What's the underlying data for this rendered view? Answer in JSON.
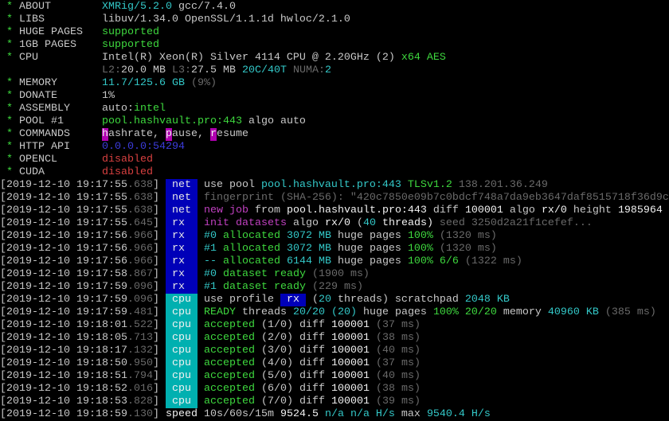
{
  "colors": {
    "background": "#000000",
    "net_tag": "#0000b8",
    "rx_tag": "#0000b8",
    "cpu_tag": "#00b0b0",
    "green": "#3ed83e",
    "cyan": "#33c8c8",
    "red": "#d84040",
    "magenta": "#c040c0",
    "blue": "#3c3cdc",
    "gray": "#6a6a6a"
  },
  "lines": [
    {
      "segs": [
        [
          " * ",
          "g"
        ],
        [
          "ABOUT        ",
          "w"
        ],
        [
          "XMRig/5.2.0",
          "c"
        ],
        [
          " gcc/7.4.0",
          "w"
        ]
      ]
    },
    {
      "segs": [
        [
          " * ",
          "g"
        ],
        [
          "LIBS         ",
          "w"
        ],
        [
          "libuv/1.34.0 OpenSSL/1.1.1d hwloc/2.1.0",
          "w"
        ]
      ]
    },
    {
      "segs": [
        [
          " * ",
          "g"
        ],
        [
          "HUGE PAGES   ",
          "w"
        ],
        [
          "supported",
          "g"
        ]
      ]
    },
    {
      "segs": [
        [
          " * ",
          "g"
        ],
        [
          "1GB PAGES    ",
          "w"
        ],
        [
          "supported",
          "g"
        ]
      ]
    },
    {
      "segs": [
        [
          " * ",
          "g"
        ],
        [
          "CPU          ",
          "w"
        ],
        [
          "Intel(R) Xeon(R) Silver 4114 CPU @ 2.20GHz (2) ",
          "w"
        ],
        [
          "x64 AES",
          "g"
        ]
      ]
    },
    {
      "segs": [
        [
          "                ",
          "w"
        ],
        [
          "L2:",
          "d"
        ],
        [
          "20.0 MB ",
          "w"
        ],
        [
          "L3:",
          "d"
        ],
        [
          "27.5 MB ",
          "w"
        ],
        [
          "20C/40T",
          "c"
        ],
        [
          " NUMA:",
          "d"
        ],
        [
          "2",
          "c"
        ]
      ]
    },
    {
      "segs": [
        [
          " * ",
          "g"
        ],
        [
          "MEMORY       ",
          "w"
        ],
        [
          "11.7/125.6 GB",
          "c"
        ],
        [
          " (9%)",
          "d"
        ]
      ]
    },
    {
      "segs": [
        [
          " * ",
          "g"
        ],
        [
          "DONATE       ",
          "w"
        ],
        [
          "1%",
          "w"
        ]
      ]
    },
    {
      "segs": [
        [
          " * ",
          "g"
        ],
        [
          "ASSEMBLY     ",
          "w"
        ],
        [
          "auto:",
          "w"
        ],
        [
          "intel",
          "g"
        ]
      ]
    },
    {
      "segs": [
        [
          " * ",
          "g"
        ],
        [
          "POOL #1      ",
          "w"
        ],
        [
          "pool.hashvault.pro:443",
          "g"
        ],
        [
          " algo auto",
          "w"
        ]
      ]
    },
    {
      "segs": [
        [
          " * ",
          "g"
        ],
        [
          "COMMANDS     ",
          "w"
        ],
        [
          "h",
          "hl"
        ],
        [
          "ashrate, ",
          "w"
        ],
        [
          "p",
          "hl"
        ],
        [
          "ause, ",
          "w"
        ],
        [
          "r",
          "hl"
        ],
        [
          "esume",
          "w"
        ]
      ]
    },
    {
      "segs": [
        [
          " * ",
          "g"
        ],
        [
          "HTTP API     ",
          "w"
        ],
        [
          "0.0.0.0:54294",
          "b"
        ]
      ]
    },
    {
      "segs": [
        [
          " * ",
          "g"
        ],
        [
          "OPENCL       ",
          "w"
        ],
        [
          "disabled",
          "r"
        ]
      ]
    },
    {
      "segs": [
        [
          " * ",
          "g"
        ],
        [
          "CUDA         ",
          "w"
        ],
        [
          "disabled",
          "r"
        ]
      ]
    },
    {
      "segs": [
        [
          "[2019-12-10 19:17:55",
          "w"
        ],
        [
          ".638",
          "d"
        ],
        [
          "] ",
          "w"
        ],
        [
          " net ",
          "tag-net"
        ],
        [
          " ",
          "w"
        ],
        [
          "use pool ",
          "w"
        ],
        [
          "pool.hashvault.pro:443",
          "c"
        ],
        [
          " TLSv1.2",
          "g"
        ],
        [
          " 138.201.36.249",
          "d"
        ]
      ]
    },
    {
      "segs": [
        [
          "[2019-12-10 19:17:55",
          "w"
        ],
        [
          ".638",
          "d"
        ],
        [
          "] ",
          "w"
        ],
        [
          " net ",
          "tag-net"
        ],
        [
          " ",
          "w"
        ],
        [
          "fingerprint (SHA-256): \"420c7850e09b7c0bdcf748a7da9eb3647daf8515718f36d9c",
          "d"
        ]
      ]
    },
    {
      "segs": [
        [
          "[2019-12-10 19:17:55",
          "w"
        ],
        [
          ".638",
          "d"
        ],
        [
          "] ",
          "w"
        ],
        [
          " net ",
          "tag-net"
        ],
        [
          " ",
          "w"
        ],
        [
          "new job",
          "m"
        ],
        [
          " from ",
          "w"
        ],
        [
          "pool.hashvault.pro:443",
          "bw"
        ],
        [
          " diff ",
          "w"
        ],
        [
          "100001",
          "bw"
        ],
        [
          " algo ",
          "w"
        ],
        [
          "rx/0",
          "bw"
        ],
        [
          " height ",
          "w"
        ],
        [
          "1985964",
          "bw"
        ]
      ]
    },
    {
      "segs": [
        [
          "[2019-12-10 19:17:55",
          "w"
        ],
        [
          ".645",
          "d"
        ],
        [
          "] ",
          "w"
        ],
        [
          " rx  ",
          "tag-rx"
        ],
        [
          " ",
          "w"
        ],
        [
          "init datasets",
          "m"
        ],
        [
          " algo ",
          "w"
        ],
        [
          "rx/0",
          "bw"
        ],
        [
          " (",
          "w"
        ],
        [
          "40",
          "c"
        ],
        [
          " threads)",
          "bw"
        ],
        [
          " seed 3250d2a21f1cefef...",
          "d"
        ]
      ]
    },
    {
      "segs": [
        [
          "[2019-12-10 19:17:56",
          "w"
        ],
        [
          ".966",
          "d"
        ],
        [
          "] ",
          "w"
        ],
        [
          " rx  ",
          "tag-rx"
        ],
        [
          " ",
          "w"
        ],
        [
          "#0",
          "c"
        ],
        [
          " allocated ",
          "g"
        ],
        [
          "3072 MB",
          "c"
        ],
        [
          " huge pages ",
          "w"
        ],
        [
          "100%",
          "g"
        ],
        [
          " (1320 ms)",
          "d"
        ]
      ]
    },
    {
      "segs": [
        [
          "[2019-12-10 19:17:56",
          "w"
        ],
        [
          ".966",
          "d"
        ],
        [
          "] ",
          "w"
        ],
        [
          " rx  ",
          "tag-rx"
        ],
        [
          " ",
          "w"
        ],
        [
          "#1",
          "c"
        ],
        [
          " allocated ",
          "g"
        ],
        [
          "3072 MB",
          "c"
        ],
        [
          " huge pages ",
          "w"
        ],
        [
          "100%",
          "g"
        ],
        [
          " (1320 ms)",
          "d"
        ]
      ]
    },
    {
      "segs": [
        [
          "[2019-12-10 19:17:56",
          "w"
        ],
        [
          ".966",
          "d"
        ],
        [
          "] ",
          "w"
        ],
        [
          " rx  ",
          "tag-rx"
        ],
        [
          " ",
          "w"
        ],
        [
          "--",
          "c"
        ],
        [
          " allocated ",
          "g"
        ],
        [
          "6144 MB",
          "c"
        ],
        [
          " huge pages ",
          "w"
        ],
        [
          "100% 6/6",
          "g"
        ],
        [
          " (1322 ms)",
          "d"
        ]
      ]
    },
    {
      "segs": [
        [
          "[2019-12-10 19:17:58",
          "w"
        ],
        [
          ".867",
          "d"
        ],
        [
          "] ",
          "w"
        ],
        [
          " rx  ",
          "tag-rx"
        ],
        [
          " ",
          "w"
        ],
        [
          "#0",
          "c"
        ],
        [
          " dataset ready",
          "g"
        ],
        [
          " (1900 ms)",
          "d"
        ]
      ]
    },
    {
      "segs": [
        [
          "[2019-12-10 19:17:59",
          "w"
        ],
        [
          ".096",
          "d"
        ],
        [
          "] ",
          "w"
        ],
        [
          " rx  ",
          "tag-rx"
        ],
        [
          " ",
          "w"
        ],
        [
          "#1",
          "c"
        ],
        [
          " dataset ready",
          "g"
        ],
        [
          " (229 ms)",
          "d"
        ]
      ]
    },
    {
      "segs": [
        [
          "[2019-12-10 19:17:59",
          "w"
        ],
        [
          ".096",
          "d"
        ],
        [
          "] ",
          "w"
        ],
        [
          " cpu ",
          "tag-cpu"
        ],
        [
          " ",
          "w"
        ],
        [
          "use profile ",
          "w"
        ],
        [
          " rx ",
          "inl-rx"
        ],
        [
          " (",
          "w"
        ],
        [
          "20",
          "c"
        ],
        [
          " threads)",
          "w"
        ],
        [
          " scratchpad ",
          "w"
        ],
        [
          "2048 KB",
          "c"
        ]
      ]
    },
    {
      "segs": [
        [
          "[2019-12-10 19:17:59",
          "w"
        ],
        [
          ".481",
          "d"
        ],
        [
          "] ",
          "w"
        ],
        [
          " cpu ",
          "tag-cpu"
        ],
        [
          " ",
          "w"
        ],
        [
          "READY",
          "g"
        ],
        [
          " threads ",
          "w"
        ],
        [
          "20/20",
          "c"
        ],
        [
          " (20)",
          "c"
        ],
        [
          " huge pages ",
          "w"
        ],
        [
          "100% 20/20",
          "g"
        ],
        [
          " memory ",
          "w"
        ],
        [
          "40960 KB",
          "c"
        ],
        [
          " (385 ms)",
          "d"
        ]
      ]
    },
    {
      "segs": [
        [
          "[2019-12-10 19:18:01",
          "w"
        ],
        [
          ".522",
          "d"
        ],
        [
          "] ",
          "w"
        ],
        [
          " cpu ",
          "tag-cpu"
        ],
        [
          " ",
          "w"
        ],
        [
          "accepted",
          "g"
        ],
        [
          " (1/0)",
          "w"
        ],
        [
          " diff ",
          "w"
        ],
        [
          "100001",
          "bw"
        ],
        [
          " (37 ms)",
          "d"
        ]
      ]
    },
    {
      "segs": [
        [
          "[2019-12-10 19:18:05",
          "w"
        ],
        [
          ".713",
          "d"
        ],
        [
          "] ",
          "w"
        ],
        [
          " cpu ",
          "tag-cpu"
        ],
        [
          " ",
          "w"
        ],
        [
          "accepted",
          "g"
        ],
        [
          " (2/0)",
          "w"
        ],
        [
          " diff ",
          "w"
        ],
        [
          "100001",
          "bw"
        ],
        [
          " (38 ms)",
          "d"
        ]
      ]
    },
    {
      "segs": [
        [
          "[2019-12-10 19:18:17",
          "w"
        ],
        [
          ".132",
          "d"
        ],
        [
          "] ",
          "w"
        ],
        [
          " cpu ",
          "tag-cpu"
        ],
        [
          " ",
          "w"
        ],
        [
          "accepted",
          "g"
        ],
        [
          " (3/0)",
          "w"
        ],
        [
          " diff ",
          "w"
        ],
        [
          "100001",
          "bw"
        ],
        [
          " (40 ms)",
          "d"
        ]
      ]
    },
    {
      "segs": [
        [
          "[2019-12-10 19:18:50",
          "w"
        ],
        [
          ".950",
          "d"
        ],
        [
          "] ",
          "w"
        ],
        [
          " cpu ",
          "tag-cpu"
        ],
        [
          " ",
          "w"
        ],
        [
          "accepted",
          "g"
        ],
        [
          " (4/0)",
          "w"
        ],
        [
          " diff ",
          "w"
        ],
        [
          "100001",
          "bw"
        ],
        [
          " (37 ms)",
          "d"
        ]
      ]
    },
    {
      "segs": [
        [
          "[2019-12-10 19:18:51",
          "w"
        ],
        [
          ".794",
          "d"
        ],
        [
          "] ",
          "w"
        ],
        [
          " cpu ",
          "tag-cpu"
        ],
        [
          " ",
          "w"
        ],
        [
          "accepted",
          "g"
        ],
        [
          " (5/0)",
          "w"
        ],
        [
          " diff ",
          "w"
        ],
        [
          "100001",
          "bw"
        ],
        [
          " (40 ms)",
          "d"
        ]
      ]
    },
    {
      "segs": [
        [
          "[2019-12-10 19:18:52",
          "w"
        ],
        [
          ".016",
          "d"
        ],
        [
          "] ",
          "w"
        ],
        [
          " cpu ",
          "tag-cpu"
        ],
        [
          " ",
          "w"
        ],
        [
          "accepted",
          "g"
        ],
        [
          " (6/0)",
          "w"
        ],
        [
          " diff ",
          "w"
        ],
        [
          "100001",
          "bw"
        ],
        [
          " (38 ms)",
          "d"
        ]
      ]
    },
    {
      "segs": [
        [
          "[2019-12-10 19:18:53",
          "w"
        ],
        [
          ".828",
          "d"
        ],
        [
          "] ",
          "w"
        ],
        [
          " cpu ",
          "tag-cpu"
        ],
        [
          " ",
          "w"
        ],
        [
          "accepted",
          "g"
        ],
        [
          " (7/0)",
          "w"
        ],
        [
          " diff ",
          "w"
        ],
        [
          "100001",
          "bw"
        ],
        [
          " (39 ms)",
          "d"
        ]
      ]
    },
    {
      "segs": [
        [
          "[2019-12-10 19:18:59",
          "w"
        ],
        [
          ".130",
          "d"
        ],
        [
          "] ",
          "w"
        ],
        [
          "speed",
          "bw"
        ],
        [
          " 10s/60s/15m ",
          "w"
        ],
        [
          "9524.5",
          "bw"
        ],
        [
          " n/a n/a H/s",
          "c"
        ],
        [
          " max ",
          "w"
        ],
        [
          "9540.4 H/s",
          "c"
        ]
      ]
    }
  ]
}
